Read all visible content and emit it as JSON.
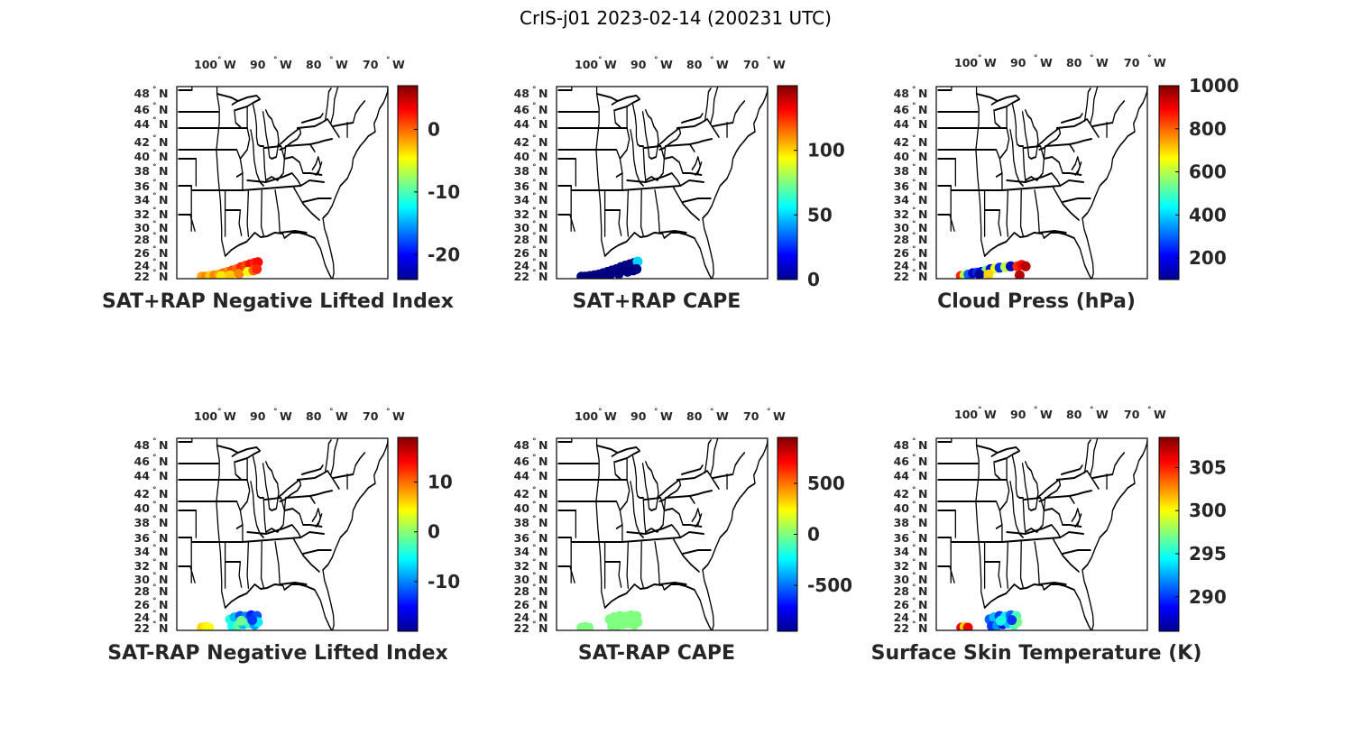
{
  "figure": {
    "title": "CrIS-j01 2023-02-14 (200231 UTC)"
  },
  "lon_labels": [
    "100",
    "90",
    "80",
    "70"
  ],
  "lon_hemisphere": "W",
  "lat_labels": [
    "48",
    "46",
    "44",
    "42",
    "40",
    "38",
    "36",
    "34",
    "32",
    "30",
    "28",
    "26",
    "24",
    "22"
  ],
  "lat_hemisphere": "N",
  "degree_symbol": "°",
  "colormap": "jet",
  "panels": [
    {
      "title": "SAT+RAP Negative Lifted Index",
      "colorbar": {
        "min": -24,
        "max": 7,
        "ticks": [
          {
            "value": 0,
            "label": "0"
          },
          {
            "value": -10,
            "label": "-10"
          },
          {
            "value": -20,
            "label": "-20"
          }
        ]
      },
      "points": [
        {
          "lon": -100.5,
          "lat": 22.3,
          "v": -2
        },
        {
          "lon": -99.8,
          "lat": 22.3,
          "v": -1
        },
        {
          "lon": -99.0,
          "lat": 22.4,
          "v": -3
        },
        {
          "lon": -98.2,
          "lat": 22.5,
          "v": -1
        },
        {
          "lon": -97.4,
          "lat": 22.6,
          "v": -2
        },
        {
          "lon": -96.6,
          "lat": 22.8,
          "v": 0
        },
        {
          "lon": -95.8,
          "lat": 23.0,
          "v": -1
        },
        {
          "lon": -95.0,
          "lat": 23.2,
          "v": 1
        },
        {
          "lon": -94.2,
          "lat": 23.4,
          "v": 0
        },
        {
          "lon": -93.4,
          "lat": 23.7,
          "v": 2
        },
        {
          "lon": -92.6,
          "lat": 23.9,
          "v": 1
        },
        {
          "lon": -91.8,
          "lat": 24.1,
          "v": 3
        },
        {
          "lon": -91.0,
          "lat": 24.3,
          "v": 2
        },
        {
          "lon": -90.4,
          "lat": 24.4,
          "v": 3
        },
        {
          "lon": -97.0,
          "lat": 22.4,
          "v": -4
        },
        {
          "lon": -95.4,
          "lat": 22.5,
          "v": -3
        },
        {
          "lon": -93.8,
          "lat": 22.7,
          "v": -1
        },
        {
          "lon": -92.2,
          "lat": 23.0,
          "v": -5
        },
        {
          "lon": -91.2,
          "lat": 23.2,
          "v": 0
        },
        {
          "lon": -90.6,
          "lat": 23.4,
          "v": 2
        }
      ]
    },
    {
      "title": "SAT+RAP CAPE",
      "colorbar": {
        "min": 0,
        "max": 150,
        "ticks": [
          {
            "value": 100,
            "label": "100"
          },
          {
            "value": 50,
            "label": "50"
          },
          {
            "value": 0,
            "label": "0"
          }
        ]
      },
      "points": [
        {
          "lon": -100.5,
          "lat": 22.3,
          "v": 0
        },
        {
          "lon": -99.8,
          "lat": 22.3,
          "v": 0
        },
        {
          "lon": -99.0,
          "lat": 22.4,
          "v": 0
        },
        {
          "lon": -98.2,
          "lat": 22.5,
          "v": 0
        },
        {
          "lon": -97.4,
          "lat": 22.6,
          "v": 0
        },
        {
          "lon": -96.6,
          "lat": 22.8,
          "v": 0
        },
        {
          "lon": -95.8,
          "lat": 23.0,
          "v": 0
        },
        {
          "lon": -95.0,
          "lat": 23.2,
          "v": 0
        },
        {
          "lon": -94.2,
          "lat": 23.4,
          "v": 0
        },
        {
          "lon": -93.4,
          "lat": 23.7,
          "v": 0
        },
        {
          "lon": -92.6,
          "lat": 23.9,
          "v": 0
        },
        {
          "lon": -91.8,
          "lat": 24.1,
          "v": 0
        },
        {
          "lon": -91.0,
          "lat": 24.3,
          "v": 0
        },
        {
          "lon": -90.4,
          "lat": 24.5,
          "v": 50
        },
        {
          "lon": -97.0,
          "lat": 22.4,
          "v": 0
        },
        {
          "lon": -95.4,
          "lat": 22.5,
          "v": 0
        },
        {
          "lon": -93.8,
          "lat": 22.7,
          "v": 0
        },
        {
          "lon": -92.2,
          "lat": 23.0,
          "v": 0
        },
        {
          "lon": -91.2,
          "lat": 23.2,
          "v": 0
        },
        {
          "lon": -90.6,
          "lat": 23.4,
          "v": 0
        }
      ]
    },
    {
      "title": "Cloud Press (hPa)",
      "colorbar": {
        "min": 100,
        "max": 1000,
        "ticks": [
          {
            "value": 1000,
            "label": "1000"
          },
          {
            "value": 800,
            "label": "800"
          },
          {
            "value": 600,
            "label": "600"
          },
          {
            "value": 400,
            "label": "400"
          },
          {
            "value": 200,
            "label": "200"
          }
        ]
      },
      "points": [
        {
          "lon": -100.6,
          "lat": 22.4,
          "v": 850
        },
        {
          "lon": -99.9,
          "lat": 22.5,
          "v": 600
        },
        {
          "lon": -99.2,
          "lat": 22.6,
          "v": 300
        },
        {
          "lon": -98.4,
          "lat": 22.8,
          "v": 150
        },
        {
          "lon": -97.6,
          "lat": 22.9,
          "v": 250
        },
        {
          "lon": -96.8,
          "lat": 23.0,
          "v": 200
        },
        {
          "lon": -96.0,
          "lat": 23.2,
          "v": 550
        },
        {
          "lon": -95.2,
          "lat": 23.4,
          "v": 180
        },
        {
          "lon": -94.4,
          "lat": 23.5,
          "v": 650
        },
        {
          "lon": -93.6,
          "lat": 23.6,
          "v": 250
        },
        {
          "lon": -92.6,
          "lat": 23.7,
          "v": 600
        },
        {
          "lon": -91.6,
          "lat": 23.8,
          "v": 150
        },
        {
          "lon": -90.4,
          "lat": 23.8,
          "v": 850
        },
        {
          "lon": -89.6,
          "lat": 24.0,
          "v": 900
        },
        {
          "lon": -88.9,
          "lat": 23.8,
          "v": 950
        },
        {
          "lon": -90.0,
          "lat": 22.5,
          "v": 950
        },
        {
          "lon": -97.2,
          "lat": 22.6,
          "v": 120
        },
        {
          "lon": -95.6,
          "lat": 22.6,
          "v": 700
        }
      ]
    },
    {
      "title": "SAT-RAP Negative Lifted Index",
      "colorbar": {
        "min": -20,
        "max": 19,
        "ticks": [
          {
            "value": 10,
            "label": "10"
          },
          {
            "value": 0,
            "label": "0"
          },
          {
            "value": -10,
            "label": "-10"
          }
        ]
      },
      "points": [
        {
          "lon": -100.5,
          "lat": 22.4,
          "v": 6
        },
        {
          "lon": -99.8,
          "lat": 22.5,
          "v": 5
        },
        {
          "lon": -99.2,
          "lat": 22.4,
          "v": 4
        },
        {
          "lon": -95.4,
          "lat": 23.6,
          "v": -4
        },
        {
          "lon": -94.6,
          "lat": 23.9,
          "v": -8
        },
        {
          "lon": -93.6,
          "lat": 24.1,
          "v": -12
        },
        {
          "lon": -92.6,
          "lat": 24.0,
          "v": -10
        },
        {
          "lon": -91.6,
          "lat": 24.2,
          "v": -14
        },
        {
          "lon": -90.6,
          "lat": 24.1,
          "v": -12
        },
        {
          "lon": -95.0,
          "lat": 22.6,
          "v": -5
        },
        {
          "lon": -94.0,
          "lat": 22.7,
          "v": -2
        },
        {
          "lon": -93.0,
          "lat": 22.9,
          "v": -8
        },
        {
          "lon": -92.0,
          "lat": 23.0,
          "v": -3
        },
        {
          "lon": -91.0,
          "lat": 22.8,
          "v": -9
        },
        {
          "lon": -90.4,
          "lat": 23.2,
          "v": -6
        },
        {
          "lon": -93.4,
          "lat": 23.4,
          "v": -1
        },
        {
          "lon": -91.4,
          "lat": 23.5,
          "v": -13
        }
      ]
    },
    {
      "title": "SAT-RAP CAPE",
      "colorbar": {
        "min": -950,
        "max": 950,
        "ticks": [
          {
            "value": 500,
            "label": "500"
          },
          {
            "value": 0,
            "label": "0"
          },
          {
            "value": -500,
            "label": "-500"
          }
        ]
      },
      "points": [
        {
          "lon": -100.5,
          "lat": 22.4,
          "v": 0
        },
        {
          "lon": -99.8,
          "lat": 22.5,
          "v": 0
        },
        {
          "lon": -99.2,
          "lat": 22.4,
          "v": 0
        },
        {
          "lon": -95.4,
          "lat": 23.6,
          "v": 0
        },
        {
          "lon": -94.6,
          "lat": 23.9,
          "v": 0
        },
        {
          "lon": -93.6,
          "lat": 24.1,
          "v": 0
        },
        {
          "lon": -92.6,
          "lat": 24.0,
          "v": 0
        },
        {
          "lon": -91.6,
          "lat": 24.2,
          "v": 0
        },
        {
          "lon": -90.6,
          "lat": 24.1,
          "v": 0
        },
        {
          "lon": -95.0,
          "lat": 22.6,
          "v": 0
        },
        {
          "lon": -94.0,
          "lat": 22.7,
          "v": 0
        },
        {
          "lon": -93.0,
          "lat": 22.9,
          "v": 0
        },
        {
          "lon": -92.0,
          "lat": 23.0,
          "v": 0
        },
        {
          "lon": -91.0,
          "lat": 22.8,
          "v": 0
        },
        {
          "lon": -90.4,
          "lat": 23.2,
          "v": 0
        },
        {
          "lon": -93.4,
          "lat": 23.4,
          "v": 0
        },
        {
          "lon": -91.4,
          "lat": 23.5,
          "v": 0
        }
      ]
    },
    {
      "title": "Surface Skin Temperature (K)",
      "colorbar": {
        "min": 286,
        "max": 308.5,
        "ticks": [
          {
            "value": 305,
            "label": "305"
          },
          {
            "value": 300,
            "label": "300"
          },
          {
            "value": 295,
            "label": "295"
          },
          {
            "value": 290,
            "label": "290"
          }
        ]
      },
      "points": [
        {
          "lon": -100.5,
          "lat": 22.4,
          "v": 306
        },
        {
          "lon": -99.9,
          "lat": 22.5,
          "v": 301
        },
        {
          "lon": -99.3,
          "lat": 22.4,
          "v": 306
        },
        {
          "lon": -95.4,
          "lat": 23.6,
          "v": 291
        },
        {
          "lon": -94.6,
          "lat": 23.9,
          "v": 293
        },
        {
          "lon": -93.6,
          "lat": 24.1,
          "v": 290
        },
        {
          "lon": -92.6,
          "lat": 24.0,
          "v": 294
        },
        {
          "lon": -91.6,
          "lat": 24.2,
          "v": 291
        },
        {
          "lon": -90.6,
          "lat": 24.1,
          "v": 296
        },
        {
          "lon": -95.0,
          "lat": 22.6,
          "v": 290
        },
        {
          "lon": -94.0,
          "lat": 22.7,
          "v": 292
        },
        {
          "lon": -93.0,
          "lat": 22.9,
          "v": 289
        },
        {
          "lon": -92.0,
          "lat": 23.0,
          "v": 293
        },
        {
          "lon": -91.0,
          "lat": 22.8,
          "v": 296
        },
        {
          "lon": -90.4,
          "lat": 23.2,
          "v": 297
        },
        {
          "lon": -93.4,
          "lat": 23.4,
          "v": 295
        },
        {
          "lon": -91.4,
          "lat": 23.5,
          "v": 290
        }
      ]
    }
  ]
}
